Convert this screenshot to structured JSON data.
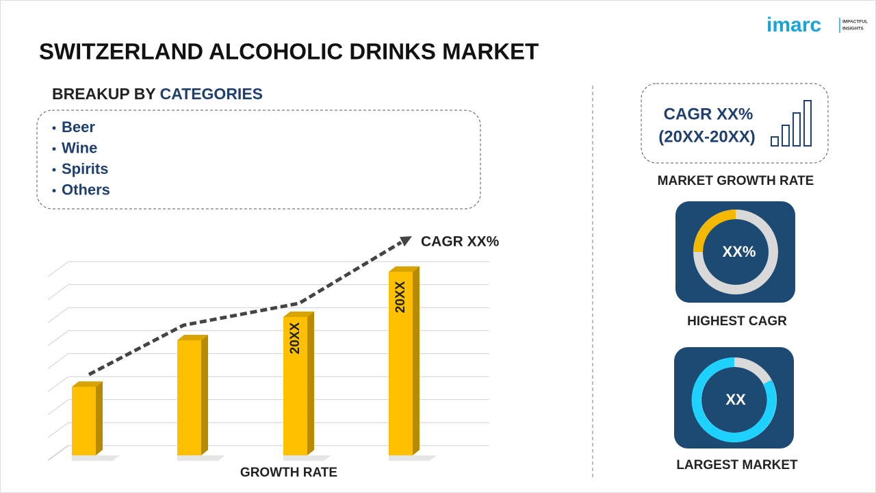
{
  "brand": {
    "logo": "imarc",
    "tagline": [
      "IMPACTFUL",
      "INSIGHTS"
    ]
  },
  "title": "SWITZERLAND ALCOHOLIC DRINKS MARKET",
  "breakup": {
    "heading": [
      "BREAKUP BY",
      "CATEGORIES"
    ],
    "items": [
      "Beer",
      "Wine",
      "Spirits",
      "Others"
    ]
  },
  "growth_chart": {
    "cagr": "CAGR XX%",
    "bar_labels": [
      "20XX",
      "20XX"
    ],
    "caption": "GROWTH RATE"
  },
  "cards": [
    {
      "lines": [
        "CAGR XX%",
        "(20XX-20XX)"
      ],
      "caption": "MARKET GROWTH RATE"
    },
    {
      "value": "XX%",
      "caption": "HIGHEST CAGR"
    },
    {
      "value": "XX",
      "caption": "LARGEST MARKET"
    }
  ]
}
